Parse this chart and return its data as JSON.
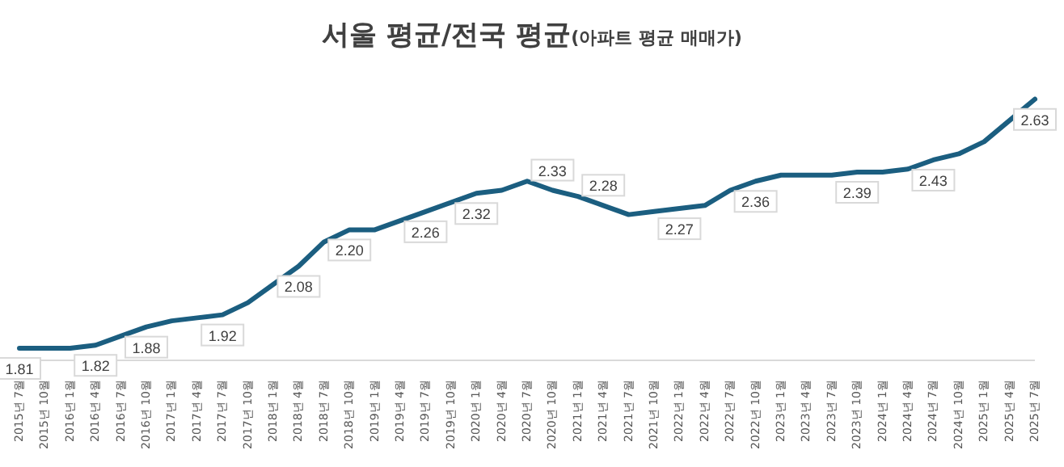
{
  "chart_data": {
    "type": "line",
    "title": "서울 평균/전국 평균",
    "subtitle": "(아파트 평균 매매가)",
    "categories": [
      "2015년 7월",
      "2015년 10월",
      "2016년 1월",
      "2016년 4월",
      "2016년 7월",
      "2016년 10월",
      "2017년 1월",
      "2017년 4월",
      "2017년 7월",
      "2017년 10월",
      "2018년 1월",
      "2018년 4월",
      "2018년 7월",
      "2018년 10월",
      "2019년 1월",
      "2019년 4월",
      "2019년 7월",
      "2019년 10월",
      "2020년 1월",
      "2020년 4월",
      "2020년 7월",
      "2020년 10월",
      "2021년 1월",
      "2021년 4월",
      "2021년 7월",
      "2021년 10월",
      "2022년 1월",
      "2022년 4월",
      "2022년 7월",
      "2022년 10월",
      "2023년 1월",
      "2023년 4월",
      "2023년 7월",
      "2023년 10월",
      "2024년 1월",
      "2024년 4월",
      "2024년 7월",
      "2024년 10월",
      "2025년 1월",
      "2025년 4월",
      "2025년 7월"
    ],
    "series": [
      {
        "color": "#1b5e80",
        "values": [
          1.81,
          1.81,
          1.81,
          1.82,
          1.85,
          1.88,
          1.9,
          1.91,
          1.92,
          1.96,
          2.02,
          2.08,
          2.16,
          2.2,
          2.2,
          2.23,
          2.26,
          2.29,
          2.32,
          2.33,
          2.36,
          2.33,
          2.31,
          2.28,
          2.25,
          2.26,
          2.27,
          2.28,
          2.33,
          2.36,
          2.38,
          2.38,
          2.38,
          2.39,
          2.39,
          2.4,
          2.43,
          2.45,
          2.49,
          2.56,
          2.63
        ],
        "value_labels": [
          "1.81",
          null,
          null,
          "1.82",
          null,
          "1.88",
          null,
          null,
          "1.92",
          null,
          null,
          "2.08",
          null,
          "2.20",
          null,
          null,
          "2.26",
          null,
          "2.32",
          null,
          null,
          "2.33",
          null,
          "2.28",
          null,
          null,
          "2.27",
          null,
          null,
          "2.36",
          null,
          null,
          null,
          "2.39",
          null,
          null,
          "2.43",
          null,
          null,
          null,
          "2.63"
        ]
      }
    ],
    "grid": false,
    "legend": false,
    "marker": "none",
    "line_style": "solid"
  }
}
